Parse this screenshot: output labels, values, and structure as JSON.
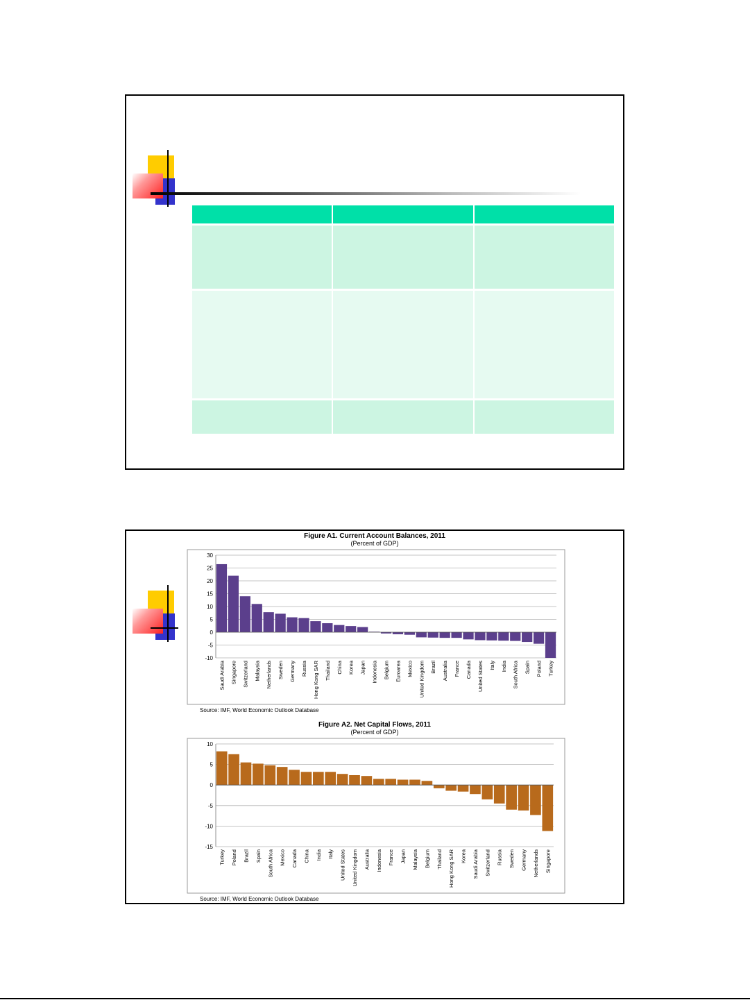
{
  "chart_data": [
    {
      "type": "bar",
      "title": "Figure A1. Current Account Balances, 2011",
      "subtitle": "(Percent of GDP)",
      "source": "Source: IMF, World Economic Outlook Database",
      "ylim": [
        -10,
        30
      ],
      "yticks": [
        30,
        25,
        20,
        15,
        10,
        5,
        0,
        -5,
        -10
      ],
      "grid": true,
      "color": "#5b3f8c",
      "categories": [
        "Saudi Arabia",
        "Singapore",
        "Switzerland",
        "Malaysia",
        "Netherlands",
        "Sweden",
        "Germany",
        "Russia",
        "Hong Kong SAR",
        "Thailand",
        "China",
        "Korea",
        "Japan",
        "Indonesia",
        "Belgium",
        "Euroarea",
        "Mexico",
        "United Kingdom",
        "Brazil",
        "Australia",
        "France",
        "Canada",
        "United States",
        "Italy",
        "India",
        "South Africa",
        "Spain",
        "Poland",
        "Turkey"
      ],
      "values": [
        26.5,
        22,
        14,
        11,
        7.8,
        7.2,
        5.8,
        5.5,
        4.3,
        3.5,
        2.8,
        2.4,
        2,
        0.2,
        -0.5,
        -0.8,
        -1,
        -2,
        -2.1,
        -2.2,
        -2.2,
        -2.8,
        -3.1,
        -3.2,
        -3.3,
        -3.4,
        -3.8,
        -4.5,
        -10
      ]
    },
    {
      "type": "bar",
      "title": "Figure A2. Net Capital Flows, 2011",
      "subtitle": "(Percent of GDP)",
      "source": "Source: IMF, World Economic Outlook Database",
      "ylim": [
        -15,
        10
      ],
      "yticks": [
        10,
        5,
        0,
        -5,
        -10,
        -15
      ],
      "grid": true,
      "color": "#b86a1c",
      "categories": [
        "Turkey",
        "Poland",
        "Brazil",
        "Spain",
        "South Africa",
        "Mexico",
        "Canada",
        "China",
        "India",
        "Italy",
        "United States",
        "United Kingdom",
        "Australia",
        "Indonesia",
        "France",
        "Japan",
        "Malaysia",
        "Belgium",
        "Thailand",
        "Hong Kong SAR",
        "Korea",
        "Saudi Arabia",
        "Switzerland",
        "Russia",
        "Sweden",
        "Germany",
        "Netherlands",
        "Singapore"
      ],
      "values": [
        8.2,
        7.5,
        5.5,
        5.2,
        4.8,
        4.4,
        3.7,
        3.2,
        3.2,
        3.2,
        2.7,
        2.4,
        2.2,
        1.5,
        1.5,
        1.3,
        1.3,
        1,
        -0.8,
        -1.4,
        -1.6,
        -2.2,
        -3.5,
        -4.5,
        -6,
        -6.2,
        -7.3,
        -11.2
      ]
    }
  ]
}
